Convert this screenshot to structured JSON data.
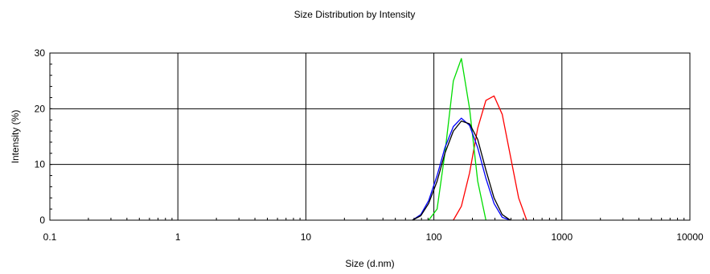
{
  "chart_data": {
    "type": "line",
    "title": "Size Distribution by Intensity",
    "xlabel": "Size (d.nm)",
    "ylabel": "Intensity (%)",
    "x_scale": "log",
    "xlim": [
      0.1,
      10000
    ],
    "ylim": [
      0,
      30
    ],
    "x_ticks": [
      0.1,
      1,
      10,
      100,
      1000,
      10000
    ],
    "x_tick_labels": [
      "0.1",
      "1",
      "10",
      "100",
      "1000",
      "10000"
    ],
    "y_ticks": [
      0,
      10,
      20,
      30
    ],
    "y_tick_labels": [
      "0",
      "10",
      "20",
      "30"
    ],
    "grid": true,
    "legend": "none",
    "series": [
      {
        "color": "#ff0000",
        "x": [
          142,
          164,
          190,
          220,
          255,
          295,
          342,
          396,
          459,
          531
        ],
        "y": [
          0,
          2.5,
          8.5,
          16.5,
          21.5,
          22.3,
          19,
          11.5,
          4,
          0
        ]
      },
      {
        "color": "#00dd00",
        "x": [
          91,
          106,
          122,
          142,
          164,
          190,
          220,
          255
        ],
        "y": [
          0,
          2,
          12,
          25,
          29,
          20,
          7,
          0
        ]
      },
      {
        "color": "#0000ff",
        "x": [
          68,
          79,
          91,
          106,
          122,
          142,
          164,
          190,
          220,
          255,
          295,
          342,
          396
        ],
        "y": [
          0,
          1,
          3.5,
          8,
          13,
          16.8,
          18.3,
          17,
          13,
          7.5,
          3,
          0.5,
          0
        ]
      },
      {
        "color": "#000000",
        "x": [
          68,
          79,
          91,
          106,
          122,
          142,
          164,
          190,
          220,
          255,
          295,
          342,
          396
        ],
        "y": [
          0,
          0.8,
          3,
          7,
          12,
          16,
          17.8,
          17.3,
          14.5,
          9,
          4,
          1,
          0
        ]
      }
    ]
  }
}
